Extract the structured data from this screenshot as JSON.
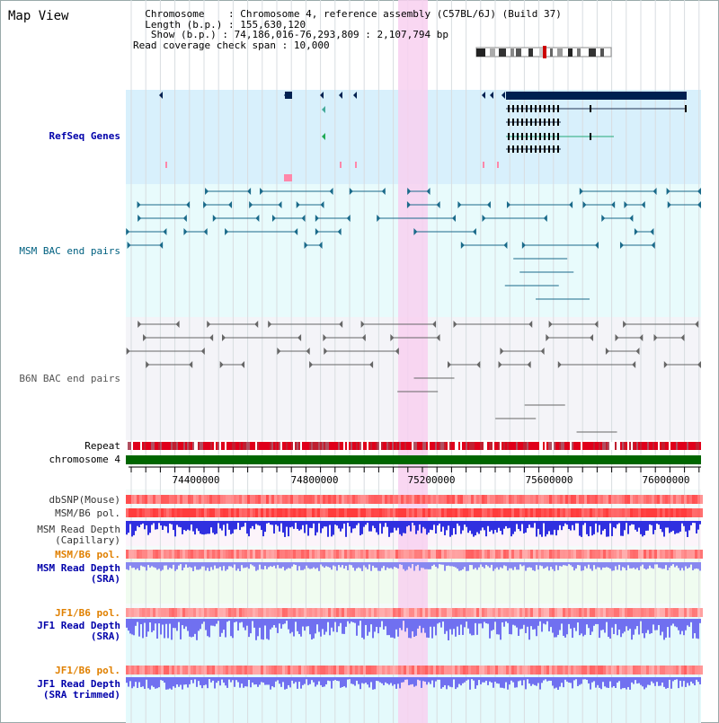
{
  "title": "Map View",
  "info": {
    "chromosome_label": "Chromosome",
    "chromosome_value": "Chromosome 4, reference assembly (C57BL/6J) (Build 37)",
    "length_label": "Length (b.p.)",
    "length_value": "155,630,120",
    "show_label": "Show (b.p.)",
    "show_value": "74,186,016-76,293,809 : 2,107,794 bp",
    "coverage_label": "Read coverage check span",
    "coverage_value": "10,000"
  },
  "tracks": {
    "refseq": "RefSeq Genes",
    "msm_bac": "MSM BAC end pairs",
    "b6n_bac": "B6N BAC end pairs",
    "repeat": "Repeat",
    "chromosome": "chromosome 4",
    "dbsnp": "dbSNP(Mouse)",
    "msm_b6_pol_1": "MSM/B6 pol.",
    "msm_read_depth_cap_1": "MSM Read Depth",
    "msm_read_depth_cap_2": "(Capillary)",
    "msm_b6_pol_2": "MSM/B6 pol.",
    "msm_read_depth_sra_1": "MSM Read Depth",
    "msm_read_depth_sra_2": "(SRA)",
    "jf1_b6_pol_1": "JF1/B6 pol.",
    "jf1_read_depth_sra_1": "JF1 Read Depth",
    "jf1_read_depth_sra_2": "(SRA)",
    "jf1_b6_pol_2": "JF1/B6 pol.",
    "jf1_read_depth_trim_1": "JF1 Read Depth",
    "jf1_read_depth_trim_2": "(SRA trimmed)"
  },
  "axis": {
    "ticks": [
      "74400000",
      "74800000",
      "75200000",
      "75600000",
      "76000000"
    ]
  },
  "colors": {
    "refseq_label": "#0000aa",
    "msm_bac_label": "#006080",
    "b6n_bac_label": "#555555",
    "orange_label": "#e08000",
    "blue_label": "#0000aa",
    "highlight": "#f8d0f0",
    "refseq_bg": "#d8f0fc",
    "bac_bg": "#e8fbfc",
    "b6n_bg": "#f4f4f8",
    "chromosome_bar": "#006600"
  }
}
